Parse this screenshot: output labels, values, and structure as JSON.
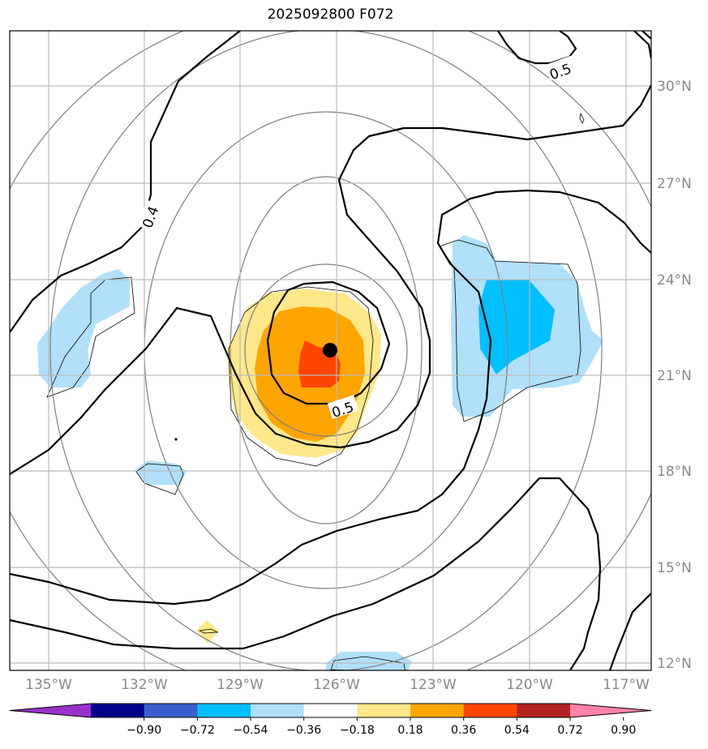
{
  "map": {
    "title": "2025092800 F072",
    "lon_labels": [
      "135°W",
      "132°W",
      "129°W",
      "126°W",
      "123°W",
      "120°W",
      "117°W"
    ],
    "lat_labels": [
      "30°N",
      "27°N",
      "24°N",
      "21°N",
      "18°N",
      "15°N",
      "12°N"
    ],
    "contour_labels": [
      "0.5",
      "0.4",
      "0.5"
    ],
    "colorbar": {
      "ticks": [
        "−0.90",
        "−0.72",
        "−0.54",
        "−0.36",
        "−0.18",
        "0.18",
        "0.36",
        "0.54",
        "0.72",
        "0.90"
      ],
      "colors": [
        "#9932cc",
        "#00008b",
        "#3a5fcd",
        "#00bfff",
        "#b0e0fa",
        "#ffffff",
        "#ffe88a",
        "#ffa500",
        "#ff4500",
        "#b22222",
        "#ff82ab"
      ]
    },
    "fill_colors": {
      "light_blue": "#b0e0fa",
      "deep_sky_blue": "#00bfff",
      "light_yellow": "#ffe88a",
      "orange": "#ffa500",
      "orange_red": "#ff4500"
    },
    "center_marker": "black-dot"
  }
}
